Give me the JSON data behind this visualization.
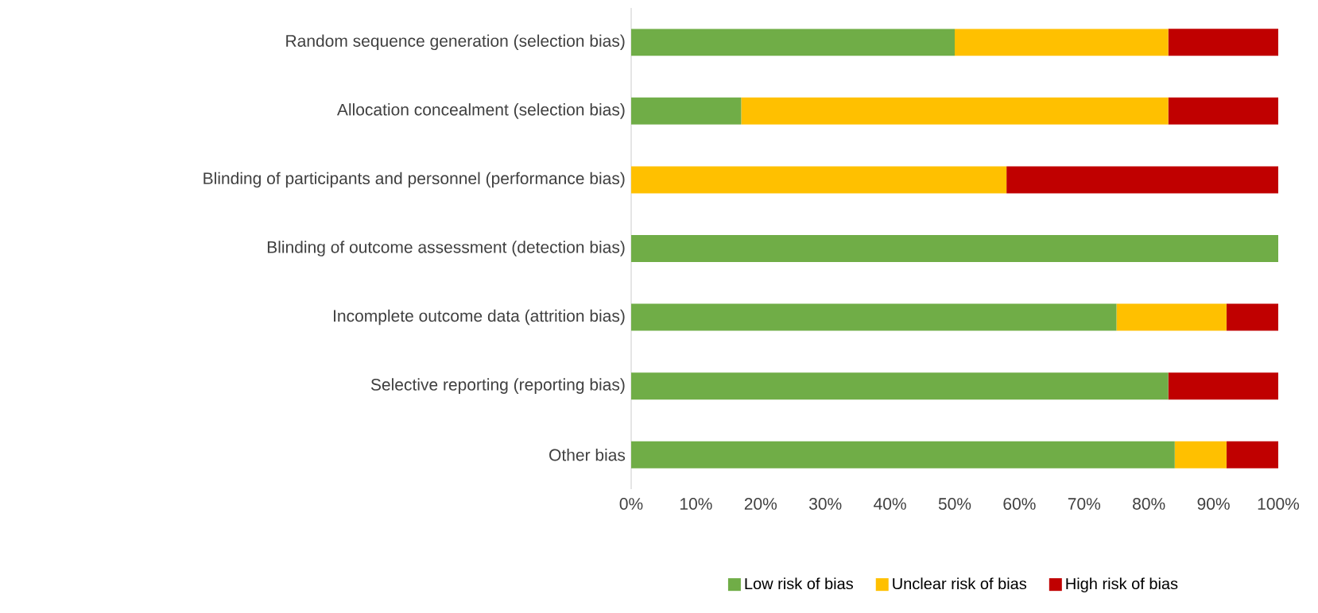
{
  "chart_data": {
    "type": "bar",
    "orientation": "horizontal",
    "stacked": true,
    "categories": [
      "Random sequence generation (selection bias)",
      "Allocation concealment (selection bias)",
      "Blinding of participants and personnel (performance bias)",
      "Blinding of outcome assessment (detection bias)",
      "Incomplete outcome data (attrition bias)",
      "Selective reporting (reporting bias)",
      "Other bias"
    ],
    "series": [
      {
        "name": "Low risk of bias",
        "color": "#70ad47",
        "values": [
          50,
          17,
          0,
          100,
          75,
          83,
          84
        ]
      },
      {
        "name": "Unclear risk of bias",
        "color": "#ffc000",
        "values": [
          33,
          66,
          58,
          0,
          17,
          0,
          8
        ]
      },
      {
        "name": "High risk of bias",
        "color": "#c00000",
        "values": [
          17,
          17,
          42,
          0,
          8,
          17,
          8
        ]
      }
    ],
    "xlim": [
      0,
      100
    ],
    "xticks": [
      {
        "value": 0,
        "label": "0%"
      },
      {
        "value": 10,
        "label": "10%"
      },
      {
        "value": 20,
        "label": "20%"
      },
      {
        "value": 30,
        "label": "30%"
      },
      {
        "value": 40,
        "label": "40%"
      },
      {
        "value": 50,
        "label": "50%"
      },
      {
        "value": 60,
        "label": "60%"
      },
      {
        "value": 70,
        "label": "70%"
      },
      {
        "value": 80,
        "label": "80%"
      },
      {
        "value": 90,
        "label": "90%"
      },
      {
        "value": 100,
        "label": "100%"
      }
    ],
    "legend": "bottom",
    "grid": false
  }
}
